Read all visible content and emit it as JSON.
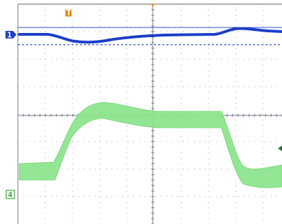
{
  "screen": {
    "background": "#ffffff",
    "grid_color": "#9aa5b1",
    "border_color": "#555a60",
    "grid": {
      "h_divisions": 10,
      "v_divisions": 8
    }
  },
  "markers": {
    "trigger_position_label": "T",
    "trigger_color": "#e88a1c",
    "ch1_label": "1",
    "ch1_color": "#1f3fc0",
    "ch4_label": "4",
    "ch4_color": "#3aa83a",
    "ch4_trigger_level_color": "#1e7a2a"
  },
  "channels": [
    {
      "id": "ch1",
      "color": "#1c3ec8",
      "style": "thin band"
    },
    {
      "id": "ch4",
      "color": "#7ee27e",
      "style": "wide noisy envelope"
    }
  ]
}
